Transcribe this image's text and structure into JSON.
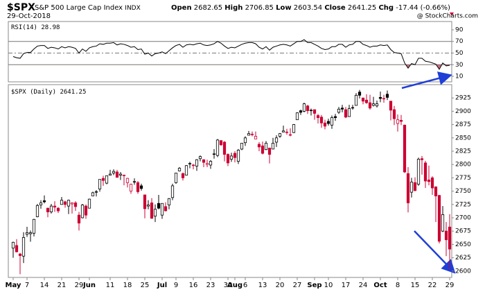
{
  "header": {
    "symbol": "$SPX",
    "name": "S&P 500 Large Cap Index",
    "exchange": "INDX",
    "date": "29-Oct-2018",
    "open_label": "Open",
    "high_label": "High",
    "low_label": "Low",
    "close_label": "Close",
    "chg_label": "Chg",
    "chg": "-17.44 (-0.66%)",
    "credit": "@ StockCharts.com"
  },
  "chart_data": [
    {
      "type": "line",
      "legend": "RSI(14)",
      "color": "#000000",
      "fill_color": "#b03048",
      "values": [
        44,
        42,
        41,
        49,
        51,
        51,
        57,
        62,
        63,
        63,
        58,
        60,
        59,
        57,
        61,
        59,
        61,
        60,
        58,
        50,
        57,
        53,
        59,
        61,
        62,
        66,
        65,
        67,
        67,
        68,
        64,
        66,
        65,
        63,
        60,
        61,
        56,
        57,
        48,
        50,
        45,
        49,
        50,
        52,
        49,
        54,
        59,
        63,
        65,
        60,
        64,
        65,
        64,
        66,
        67,
        64,
        63,
        64,
        66,
        70,
        67,
        62,
        58,
        60,
        59,
        62,
        65,
        67,
        68,
        68,
        66,
        60,
        57,
        61,
        55,
        60,
        62,
        64,
        65,
        64,
        62,
        66,
        70,
        70,
        73,
        68,
        68,
        65,
        62,
        58,
        56,
        57,
        61,
        61,
        65,
        65,
        60,
        64,
        65,
        70,
        70,
        65,
        63,
        60,
        62,
        62,
        64,
        63,
        64,
        56,
        51,
        50,
        49,
        33,
        24,
        32,
        30,
        41,
        41,
        36,
        35,
        33,
        31,
        22,
        33,
        28,
        28.98
      ],
      "ylim": [
        0,
        100
      ],
      "yticks": [
        10,
        30,
        50,
        70,
        90
      ],
      "levels": [
        70,
        50,
        30
      ],
      "oversold": 30
    },
    {
      "type": "candlestick",
      "legend": "$SPX (Daily)",
      "up_color": "#000000",
      "down_color": "#cc0033",
      "grid": false,
      "categories": [
        "May",
        null,
        null,
        null,
        "7",
        null,
        null,
        null,
        null,
        "14",
        null,
        null,
        null,
        null,
        "21",
        null,
        null,
        null,
        null,
        "29",
        null,
        null,
        "Jun",
        null,
        null,
        null,
        null,
        null,
        "11",
        null,
        null,
        null,
        null,
        "18",
        null,
        null,
        null,
        null,
        "25",
        null,
        null,
        null,
        null,
        "Jul",
        null,
        null,
        null,
        "9",
        null,
        null,
        null,
        null,
        "16",
        null,
        null,
        null,
        null,
        "23",
        null,
        null,
        null,
        null,
        "30",
        null,
        "Aug",
        null,
        null,
        "6",
        null,
        null,
        null,
        null,
        "13",
        null,
        null,
        null,
        null,
        "20",
        null,
        null,
        null,
        null,
        "27",
        null,
        null,
        null,
        null,
        "Sep",
        null,
        null,
        null,
        "10",
        null,
        null,
        null,
        null,
        "17",
        null,
        null,
        null,
        null,
        "24",
        null,
        null,
        null,
        null,
        "Oct",
        null,
        null,
        null,
        null,
        "8",
        null,
        null,
        null,
        null,
        "15",
        null,
        null,
        null,
        null,
        "22",
        null,
        null,
        null,
        null,
        "29"
      ],
      "month_labels": [
        "May",
        "Jun",
        "Jul",
        "Aug",
        "Sep",
        "Oct"
      ],
      "open": [
        2643,
        2648,
        2632,
        2628,
        2669,
        2670,
        2671,
        2702,
        2724,
        2732,
        2718,
        2711,
        2722,
        2718,
        2725,
        2730,
        2722,
        2726,
        2728,
        2705,
        2700,
        2722,
        2718,
        2741,
        2748,
        2754,
        2774,
        2765,
        2780,
        2784,
        2786,
        2780,
        2780,
        2766,
        2750,
        2767,
        2766,
        2760,
        2743,
        2722,
        2728,
        2703,
        2727,
        2705,
        2721,
        2724,
        2738,
        2766,
        2788,
        2783,
        2780,
        2802,
        2799,
        2797,
        2811,
        2809,
        2800,
        2799,
        2820,
        2817,
        2845,
        2842,
        2819,
        2810,
        2821,
        2806,
        2829,
        2841,
        2855,
        2856,
        2848,
        2838,
        2835,
        2828,
        2831,
        2829,
        2842,
        2853,
        2861,
        2860,
        2856,
        2860,
        2884,
        2901,
        2900,
        2910,
        2901,
        2903,
        2892,
        2889,
        2878,
        2881,
        2874,
        2890,
        2898,
        2906,
        2903,
        2890,
        2906,
        2911,
        2936,
        2925,
        2921,
        2916,
        2911,
        2910,
        2926,
        2924,
        2932,
        2919,
        2903,
        2877,
        2883,
        2874,
        2783,
        2748,
        2766,
        2763,
        2811,
        2803,
        2771,
        2775,
        2758,
        2742,
        2675,
        2675,
        2682.65
      ],
      "high": [
        2655,
        2660,
        2634,
        2673,
        2683,
        2676,
        2698,
        2726,
        2733,
        2742,
        2719,
        2726,
        2731,
        2720,
        2739,
        2732,
        2734,
        2729,
        2731,
        2711,
        2726,
        2725,
        2736,
        2749,
        2752,
        2772,
        2779,
        2779,
        2790,
        2791,
        2790,
        2786,
        2781,
        2775,
        2764,
        2774,
        2769,
        2764,
        2743,
        2733,
        2737,
        2725,
        2743,
        2727,
        2729,
        2737,
        2764,
        2784,
        2795,
        2785,
        2799,
        2805,
        2801,
        2810,
        2817,
        2810,
        2809,
        2808,
        2829,
        2848,
        2845,
        2844,
        2821,
        2822,
        2825,
        2829,
        2840,
        2853,
        2863,
        2862,
        2862,
        2842,
        2843,
        2844,
        2831,
        2850,
        2855,
        2859,
        2873,
        2867,
        2868,
        2876,
        2898,
        2903,
        2916,
        2912,
        2905,
        2903,
        2895,
        2893,
        2884,
        2886,
        2892,
        2895,
        2908,
        2912,
        2908,
        2912,
        2912,
        2934,
        2940,
        2925,
        2932,
        2931,
        2927,
        2920,
        2937,
        2931,
        2939,
        2919,
        2910,
        2894,
        2893,
        2875,
        2795,
        2775,
        2776,
        2813,
        2816,
        2807,
        2798,
        2778,
        2759,
        2743,
        2722,
        2692,
        2706.85
      ],
      "low": [
        2625,
        2635,
        2594,
        2615,
        2664,
        2655,
        2665,
        2701,
        2717,
        2727,
        2701,
        2708,
        2711,
        2709,
        2725,
        2719,
        2707,
        2708,
        2713,
        2676,
        2699,
        2698,
        2718,
        2741,
        2740,
        2749,
        2760,
        2763,
        2780,
        2780,
        2775,
        2771,
        2761,
        2757,
        2745,
        2762,
        2745,
        2751,
        2699,
        2716,
        2698,
        2692,
        2716,
        2698,
        2712,
        2716,
        2733,
        2764,
        2787,
        2770,
        2780,
        2793,
        2791,
        2788,
        2806,
        2795,
        2795,
        2792,
        2811,
        2814,
        2835,
        2806,
        2797,
        2805,
        2804,
        2801,
        2827,
        2835,
        2855,
        2853,
        2848,
        2825,
        2819,
        2827,
        2802,
        2829,
        2833,
        2850,
        2861,
        2856,
        2853,
        2859,
        2884,
        2893,
        2898,
        2895,
        2892,
        2884,
        2877,
        2869,
        2866,
        2873,
        2867,
        2882,
        2895,
        2898,
        2887,
        2890,
        2903,
        2911,
        2924,
        2913,
        2914,
        2903,
        2909,
        2907,
        2917,
        2916,
        2921,
        2883,
        2874,
        2862,
        2874,
        2784,
        2710,
        2738,
        2750,
        2760,
        2781,
        2756,
        2761,
        2743,
        2692,
        2652,
        2673,
        2628,
        2603.54
      ],
      "close": [
        2654,
        2636,
        2629,
        2663,
        2672,
        2672,
        2697,
        2723,
        2728,
        2730,
        2711,
        2722,
        2720,
        2713,
        2733,
        2725,
        2733,
        2728,
        2721,
        2690,
        2724,
        2705,
        2735,
        2747,
        2749,
        2772,
        2770,
        2779,
        2782,
        2787,
        2776,
        2782,
        2780,
        2774,
        2763,
        2768,
        2749,
        2755,
        2717,
        2724,
        2699,
        2716,
        2718,
        2727,
        2713,
        2736,
        2760,
        2784,
        2793,
        2775,
        2798,
        2801,
        2798,
        2809,
        2815,
        2804,
        2802,
        2806,
        2820,
        2846,
        2837,
        2819,
        2803,
        2816,
        2813,
        2827,
        2840,
        2850,
        2858,
        2857,
        2853,
        2833,
        2821,
        2840,
        2819,
        2840,
        2850,
        2858,
        2863,
        2861,
        2856,
        2875,
        2897,
        2898,
        2914,
        2901,
        2902,
        2896,
        2888,
        2878,
        2872,
        2877,
        2888,
        2888,
        2904,
        2904,
        2889,
        2905,
        2907,
        2930,
        2930,
        2919,
        2916,
        2906,
        2914,
        2914,
        2924,
        2923,
        2926,
        2902,
        2886,
        2884,
        2881,
        2786,
        2728,
        2767,
        2751,
        2810,
        2809,
        2769,
        2768,
        2756,
        2741,
        2656,
        2706,
        2658.69,
        2641.25
      ],
      "ylim": [
        2588,
        2950
      ],
      "yticks": [
        2600,
        2625,
        2650,
        2675,
        2700,
        2725,
        2750,
        2775,
        2800,
        2825,
        2850,
        2875,
        2900,
        2925
      ]
    }
  ]
}
